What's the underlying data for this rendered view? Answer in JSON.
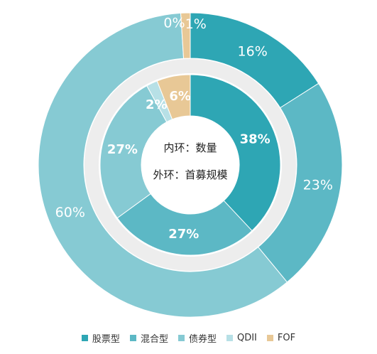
{
  "chart_data": {
    "type": "pie",
    "categories": [
      "股票型",
      "混合型",
      "债券型",
      "QDII",
      "FOF"
    ],
    "colors": [
      "#2EA6B4",
      "#5CB8C5",
      "#86CAD3",
      "#B7E0E6",
      "#E8C896"
    ],
    "center_text": [
      "内环：数量",
      "外环：首募规模"
    ],
    "series": [
      {
        "ring": "outer",
        "values": [
          16,
          23,
          60,
          0,
          1
        ],
        "labels": [
          "16%",
          "23%",
          "60%",
          "0%",
          "1%"
        ]
      },
      {
        "ring": "inner",
        "values": [
          38,
          27,
          27,
          2,
          6
        ],
        "labels": [
          "38%",
          "27%",
          "27%",
          "2%",
          "6%"
        ]
      }
    ],
    "legend_position": "bottom"
  }
}
